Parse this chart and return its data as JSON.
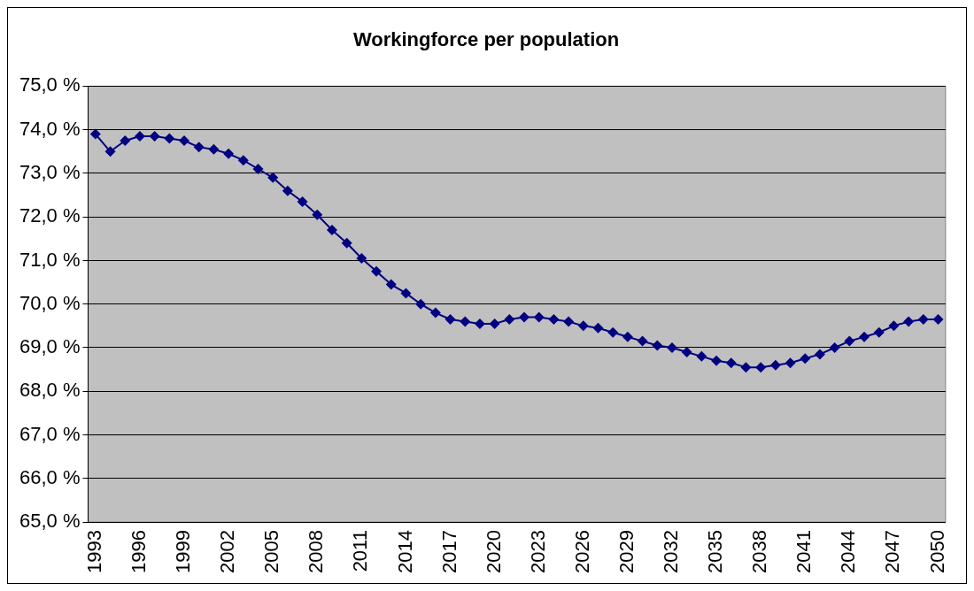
{
  "chart_data": {
    "type": "line",
    "title": "Workingforce per population",
    "categories": [
      "1993",
      null,
      null,
      "1996",
      null,
      null,
      "1999",
      null,
      null,
      "2002",
      null,
      null,
      "2005",
      null,
      null,
      "2008",
      null,
      null,
      "2011",
      null,
      null,
      "2014",
      null,
      null,
      "2017",
      null,
      null,
      "2020",
      null,
      null,
      "2023",
      null,
      null,
      "2026",
      null,
      null,
      "2029",
      null,
      null,
      "2032",
      null,
      null,
      "2035",
      null,
      null,
      "2038",
      null,
      null,
      "2041",
      null,
      null,
      "2044",
      null,
      null,
      "2047",
      null,
      null,
      "2050"
    ],
    "series": [
      {
        "color": "#000080",
        "values": [
          73.9,
          73.5,
          73.75,
          73.85,
          73.85,
          73.8,
          73.75,
          73.6,
          73.55,
          73.45,
          73.3,
          73.1,
          72.9,
          72.6,
          72.35,
          72.05,
          71.7,
          71.4,
          71.05,
          70.75,
          70.45,
          70.25,
          70.0,
          69.8,
          69.65,
          69.6,
          69.55,
          69.55,
          69.65,
          69.7,
          69.7,
          69.65,
          69.6,
          69.5,
          69.45,
          69.35,
          69.25,
          69.15,
          69.05,
          69.0,
          68.9,
          68.8,
          68.7,
          68.65,
          68.55,
          68.55,
          68.6,
          68.65,
          68.75,
          68.85,
          69.0,
          69.15,
          69.25,
          69.35,
          69.5,
          69.6,
          69.65,
          69.65
        ]
      }
    ],
    "ylim": [
      65,
      75
    ],
    "yticks": [
      {
        "value": 65,
        "label": "65,0 %"
      },
      {
        "value": 66,
        "label": "66,0 %"
      },
      {
        "value": 67,
        "label": "67,0 %"
      },
      {
        "value": 68,
        "label": "68,0 %"
      },
      {
        "value": 69,
        "label": "69,0 %"
      },
      {
        "value": 70,
        "label": "70,0 %"
      },
      {
        "value": 71,
        "label": "71,0 %"
      },
      {
        "value": 72,
        "label": "72,0 %"
      },
      {
        "value": 73,
        "label": "73,0 %"
      },
      {
        "value": 74,
        "label": "74,0 %"
      },
      {
        "value": 75,
        "label": "75,0 %"
      }
    ],
    "grid": "y",
    "legend": false,
    "marker": "diamond",
    "line_style": "solid"
  }
}
